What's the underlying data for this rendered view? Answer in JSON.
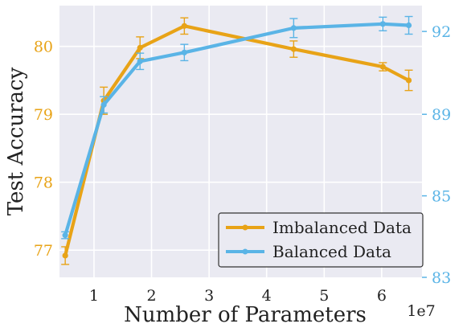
{
  "chart_data": {
    "type": "line",
    "xlabel": "Number of Parameters",
    "ylabel": "Test Accuracy",
    "x_offset_label": "1e7",
    "x_ticks": [
      "1",
      "2",
      "3",
      "4",
      "5",
      "6"
    ],
    "y_left_ticks": [
      "77",
      "78",
      "79",
      "80"
    ],
    "y_right_ticks": [
      "83",
      "85",
      "89",
      "92"
    ],
    "xlim": [
      0.4,
      6.7
    ],
    "ylim_left": [
      76.6,
      80.6
    ],
    "grid": true,
    "legend_position": "bottom-right",
    "x": [
      0.5,
      1.17,
      1.8,
      2.57,
      4.47,
      6.02,
      6.47
    ],
    "series": [
      {
        "name": "Imbalanced Data",
        "axis": "left",
        "color": "#e8a317",
        "values": [
          76.92,
          79.2,
          79.98,
          80.3,
          79.96,
          79.7,
          79.5
        ],
        "errors": [
          0.13,
          0.2,
          0.16,
          0.12,
          0.12,
          0.06,
          0.15
        ]
      },
      {
        "name": "Balanced Data",
        "axis": "left",
        "color": "#5ab4e6",
        "values": [
          77.22,
          79.14,
          79.78,
          79.91,
          80.27,
          80.33,
          80.31
        ],
        "errors": [
          0.05,
          0.12,
          0.12,
          0.12,
          0.14,
          0.1,
          0.13
        ]
      }
    ]
  }
}
